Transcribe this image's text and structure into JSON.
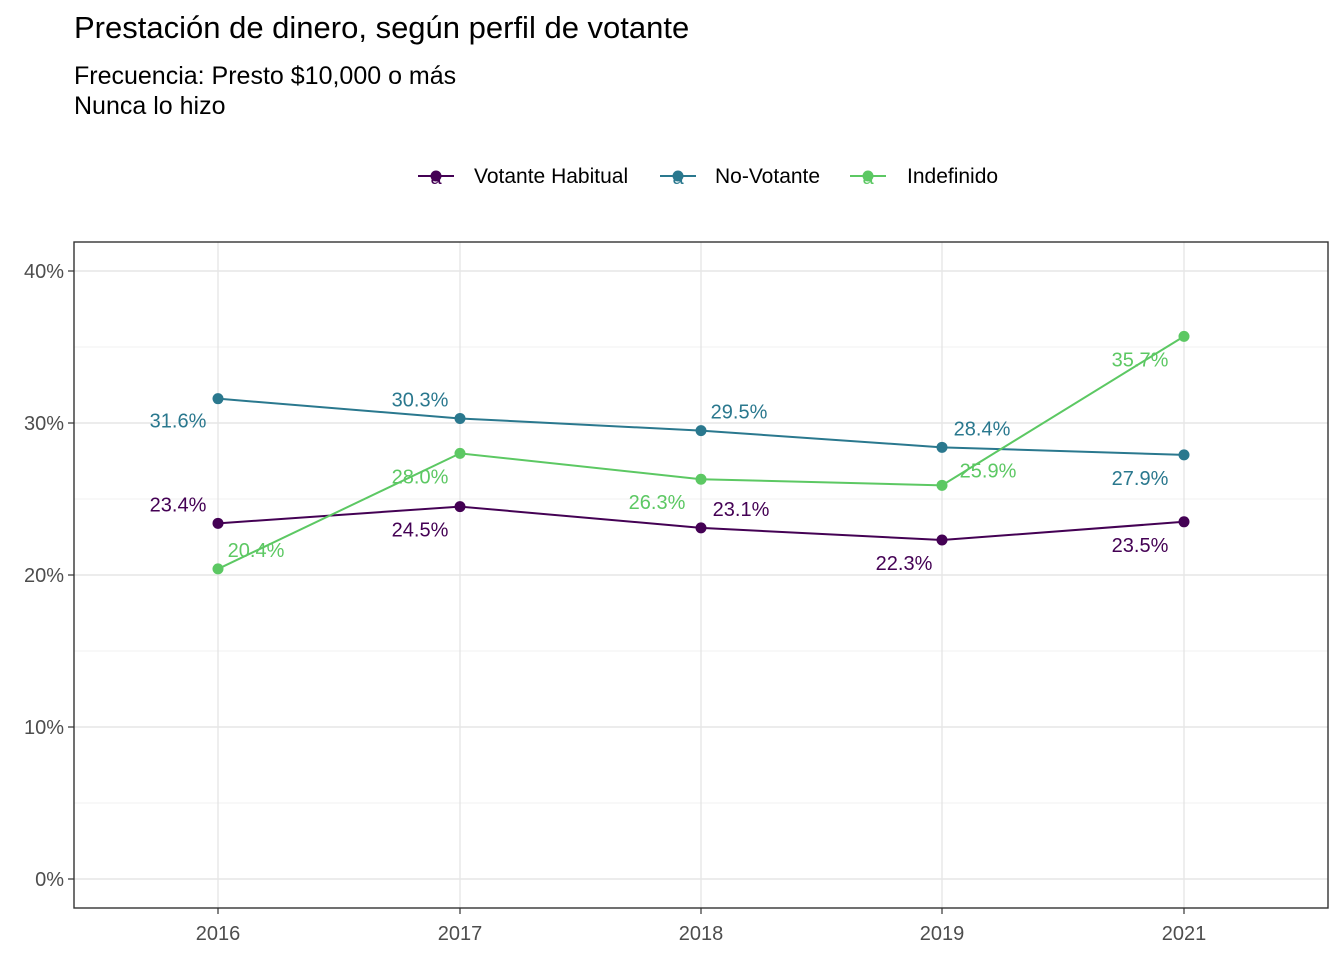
{
  "chart_data": {
    "type": "line",
    "title": "Prestación de dinero, según perfil de votante",
    "subtitle": "Frecuencia: Presto $10,000 o más\nNunca lo hizo",
    "xlabel": "",
    "ylabel": "",
    "categories": [
      "2016",
      "2017",
      "2018",
      "2019",
      "2021"
    ],
    "ylim": [
      0,
      40
    ],
    "yticks": [
      "0%",
      "10%",
      "20%",
      "30%",
      "40%"
    ],
    "grid": true,
    "legend_position": "top",
    "series": [
      {
        "name": "Votante Habitual",
        "color": "#440154",
        "values": [
          23.4,
          24.5,
          23.1,
          22.3,
          23.5
        ],
        "labels": [
          "23.4%",
          "24.5%",
          "23.1%",
          "22.3%",
          "23.5%"
        ]
      },
      {
        "name": "No-Votante",
        "color": "#2A788E",
        "values": [
          31.6,
          30.3,
          29.5,
          28.4,
          27.9
        ],
        "labels": [
          "31.6%",
          "30.3%",
          "29.5%",
          "28.4%",
          "27.9%"
        ]
      },
      {
        "name": "Indefinido",
        "color": "#5CC863",
        "values": [
          20.4,
          28.0,
          26.3,
          25.9,
          35.7
        ],
        "labels": [
          "20.4%",
          "28.0%",
          "26.3%",
          "25.9%",
          "35.7%"
        ]
      }
    ],
    "legend_key_glyph": "a"
  }
}
